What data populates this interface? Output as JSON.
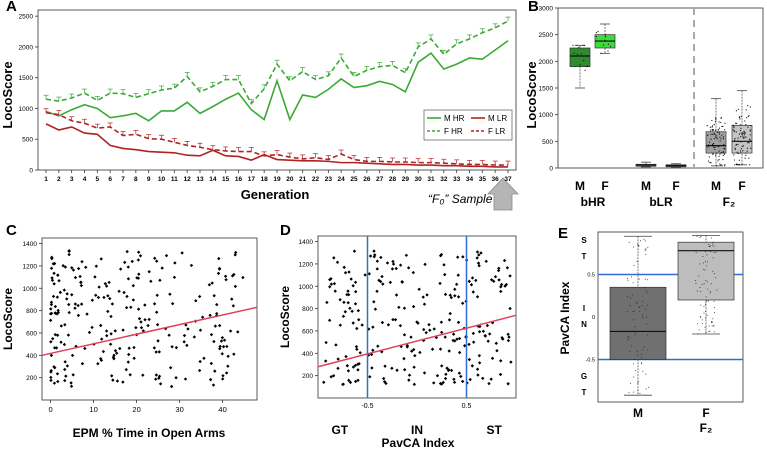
{
  "panel_labels": {
    "a": "A",
    "b": "B",
    "c": "C",
    "d": "D",
    "e": "E"
  },
  "colors": {
    "hr": "#3aaa35",
    "lr": "#b22222",
    "bhr_m": "#2e8b2e",
    "bhr_f": "#3ddc3d",
    "blr": "#777777",
    "f2": "#a0a0a0",
    "f2_f": "#c4c4c4",
    "fit": "#e0405a",
    "vline": "#2f6fd0",
    "hline": "#2f6fd0",
    "arrow": "#b5b5b5"
  },
  "chart_data": [
    {
      "id": "A",
      "type": "line",
      "xlabel": "Generation",
      "ylabel": "LocoScore",
      "x": [
        1,
        2,
        3,
        4,
        5,
        6,
        7,
        8,
        9,
        10,
        11,
        12,
        13,
        14,
        15,
        16,
        17,
        18,
        19,
        20,
        21,
        22,
        23,
        24,
        25,
        26,
        27,
        28,
        29,
        30,
        31,
        32,
        33,
        34,
        35,
        36,
        37
      ],
      "ylim": [
        0,
        2600
      ],
      "yticks": [
        0,
        500,
        1000,
        1500,
        2000,
        2500
      ],
      "series": [
        {
          "name": "M HR",
          "style": "solid",
          "color": "hr",
          "values": [
            950,
            880,
            980,
            1060,
            1000,
            850,
            880,
            920,
            800,
            960,
            960,
            1100,
            920,
            1030,
            1150,
            1250,
            980,
            820,
            1450,
            820,
            1220,
            1180,
            1310,
            1480,
            1340,
            1370,
            1440,
            1390,
            1270,
            1750,
            1900,
            1640,
            1720,
            1820,
            1800,
            1950,
            2100
          ]
        },
        {
          "name": "F HR",
          "style": "dashed",
          "color": "hr",
          "values": [
            1150,
            1120,
            1170,
            1250,
            1130,
            1250,
            1240,
            1180,
            1240,
            1300,
            1330,
            1520,
            1270,
            1360,
            1470,
            1470,
            1080,
            1320,
            1720,
            1450,
            1600,
            1470,
            1530,
            1820,
            1520,
            1620,
            1680,
            1700,
            1580,
            2000,
            2130,
            1880,
            2050,
            2130,
            2230,
            2310,
            2420
          ]
        },
        {
          "name": "M LR",
          "style": "solid",
          "color": "lr",
          "values": [
            750,
            650,
            700,
            600,
            580,
            400,
            350,
            330,
            300,
            290,
            280,
            240,
            230,
            320,
            230,
            220,
            160,
            250,
            170,
            160,
            150,
            150,
            140,
            120,
            120,
            110,
            100,
            90,
            90,
            80,
            80,
            70,
            70,
            60,
            60,
            50,
            50
          ]
        },
        {
          "name": "F LR",
          "style": "dashed",
          "color": "lr",
          "values": [
            930,
            900,
            800,
            760,
            680,
            700,
            560,
            580,
            510,
            500,
            450,
            400,
            370,
            330,
            310,
            300,
            300,
            230,
            250,
            210,
            180,
            200,
            170,
            260,
            170,
            140,
            140,
            130,
            130,
            120,
            120,
            110,
            100,
            90,
            90,
            80,
            80
          ]
        }
      ],
      "legend": [
        {
          "label": "M HR",
          "color": "hr",
          "style": "solid"
        },
        {
          "label": "M LR",
          "color": "lr",
          "style": "solid"
        },
        {
          "label": "F HR",
          "color": "hr",
          "style": "dashed"
        },
        {
          "label": "F LR",
          "color": "lr",
          "style": "dashed"
        }
      ],
      "annotation": "“F₀” Sample",
      "annotation_sub": "0"
    },
    {
      "id": "B",
      "type": "box",
      "ylabel": "LocoScore",
      "ylim": [
        0,
        3000
      ],
      "yticks": [
        0,
        500,
        1000,
        1500,
        2000,
        2500,
        3000
      ],
      "boxes": [
        {
          "group": "bHR",
          "sex": "M",
          "q1": 1900,
          "median": 2100,
          "q3": 2250,
          "lo": 1500,
          "hi": 2300,
          "color": "bhr_m"
        },
        {
          "group": "bHR",
          "sex": "F",
          "q1": 2250,
          "median": 2380,
          "q3": 2500,
          "lo": 2150,
          "hi": 2700,
          "color": "bhr_f"
        },
        {
          "group": "bLR",
          "sex": "M",
          "q1": 40,
          "median": 55,
          "q3": 70,
          "lo": 20,
          "hi": 110,
          "color": "blr"
        },
        {
          "group": "bLR",
          "sex": "F",
          "q1": 30,
          "median": 45,
          "q3": 60,
          "lo": 10,
          "hi": 80,
          "color": "blr"
        },
        {
          "group": "F₂",
          "sex": "M",
          "q1": 280,
          "median": 420,
          "q3": 680,
          "lo": 40,
          "hi": 1300,
          "color": "f2"
        },
        {
          "group": "F₂",
          "sex": "F",
          "q1": 280,
          "median": 500,
          "q3": 800,
          "lo": 60,
          "hi": 1450,
          "color": "f2_f"
        }
      ],
      "group_labels": [
        "bHR",
        "bLR",
        "F₂"
      ],
      "sex_labels": [
        "M",
        "F"
      ]
    },
    {
      "id": "C",
      "type": "scatter",
      "xlabel": "EPM % Time in Open Arms",
      "ylabel": "LocoScore",
      "xlim": [
        -2,
        48
      ],
      "ylim": [
        0,
        1450
      ],
      "xticks": [
        0,
        10,
        20,
        30,
        40
      ],
      "yticks": [
        200,
        400,
        600,
        800,
        1000,
        1200,
        1400
      ],
      "fit": {
        "x": [
          -2,
          48
        ],
        "y": [
          400,
          830
        ]
      }
    },
    {
      "id": "D",
      "type": "scatter",
      "xlabel": "PavCA Index",
      "ylabel": "LocoScore",
      "xlim": [
        -1,
        1
      ],
      "ylim": [
        0,
        1450
      ],
      "yticks": [
        200,
        400,
        600,
        800,
        1000,
        1200,
        1400
      ],
      "category_ticks": [
        {
          "x": -0.78,
          "label": "GT"
        },
        {
          "x": 0.0,
          "label": "IN"
        },
        {
          "x": 0.78,
          "label": "ST"
        }
      ],
      "vlines": [
        {
          "x": -0.5,
          "label": "-0.5"
        },
        {
          "x": 0.5,
          "label": "0.5"
        }
      ],
      "fit": {
        "x": [
          -1,
          1
        ],
        "y": [
          280,
          740
        ]
      }
    },
    {
      "id": "E",
      "type": "box",
      "ylabel": "PavCA Index",
      "xlabel": "F₂",
      "ylim": [
        -1,
        1
      ],
      "region_labels": [
        {
          "label": "S T",
          "y": 0.8
        },
        {
          "label": "I N",
          "y": 0.0
        },
        {
          "label": "G T",
          "y": -0.8
        }
      ],
      "tick_labels": [
        {
          "y": 0.5,
          "label": "0.5"
        },
        {
          "y": 0.0,
          "label": "0"
        },
        {
          "y": -0.5,
          "label": "-0.5"
        }
      ],
      "hlines": [
        0.5,
        -0.5
      ],
      "boxes": [
        {
          "sex": "M",
          "q1": -0.5,
          "median": -0.17,
          "q3": 0.35,
          "lo": -0.92,
          "hi": 0.95,
          "color": "#707070"
        },
        {
          "sex": "F",
          "q1": 0.2,
          "median": 0.78,
          "q3": 0.88,
          "lo": -0.2,
          "hi": 0.96,
          "color": "#bdbdbd"
        }
      ]
    }
  ]
}
